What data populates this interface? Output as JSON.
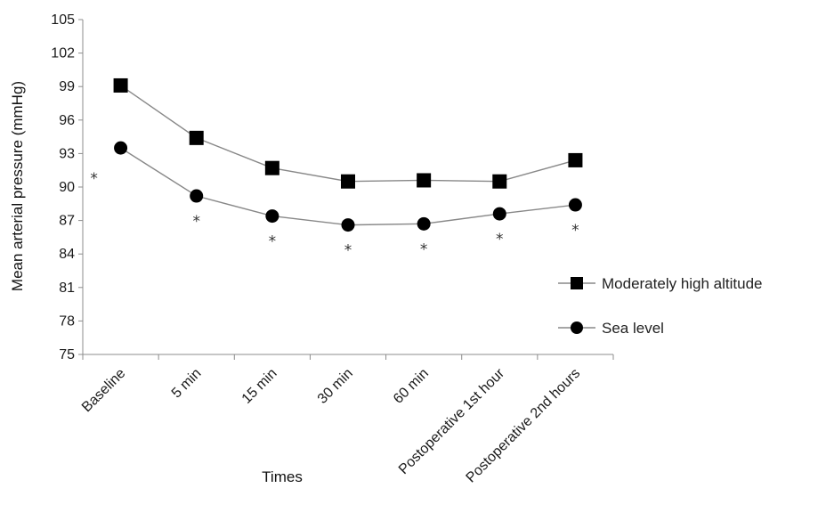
{
  "chart_data": {
    "type": "line",
    "xlabel": "Times",
    "ylabel": "Mean arterial pressure (mmHg)",
    "ylim": [
      75,
      105
    ],
    "yticks": [
      "75",
      "78",
      "81",
      "84",
      "87",
      "90",
      "93",
      "96",
      "99",
      "102",
      "105"
    ],
    "categories": [
      "Baseline",
      "5 min",
      "15 min",
      "30 min",
      "60 min",
      "Postoperative 1st hour",
      "Postoperative 2nd hours"
    ],
    "series": [
      {
        "name": "Moderately high altitude",
        "marker": "square",
        "color": "#000000",
        "values": [
          99.1,
          94.4,
          91.7,
          90.5,
          90.6,
          90.5,
          92.4
        ]
      },
      {
        "name": "Sea level",
        "marker": "circle",
        "color": "#000000",
        "values": [
          93.5,
          89.2,
          87.4,
          86.6,
          86.7,
          87.6,
          88.4
        ]
      }
    ],
    "annotations": [
      "*",
      "*",
      "*",
      "*",
      "*",
      "*",
      "*"
    ],
    "line_color": "#888888",
    "grid": false,
    "legend_position": "right"
  }
}
